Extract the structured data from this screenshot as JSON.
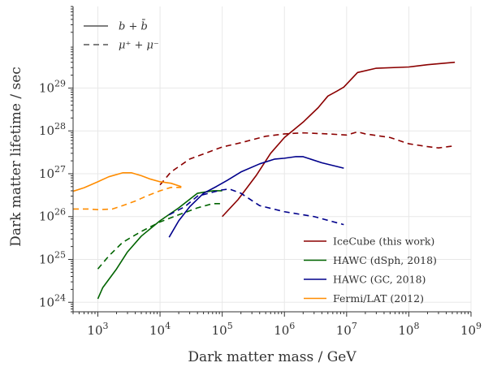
{
  "chart_data": {
    "type": "line",
    "xlabel": "Dark matter mass / GeV",
    "ylabel": "Dark matter lifetime / sec",
    "xscale": "log",
    "yscale": "log",
    "xlim": [
      400,
      1000000000
    ],
    "ylim": [
      600000000000000000000000,
      8e+30
    ],
    "grid": true,
    "x_ticks": [
      {
        "value": 1000,
        "label": "10^3"
      },
      {
        "value": 10000,
        "label": "10^4"
      },
      {
        "value": 100000,
        "label": "10^5"
      },
      {
        "value": 1000000,
        "label": "10^6"
      },
      {
        "value": 10000000,
        "label": "10^7"
      },
      {
        "value": 100000000,
        "label": "10^8"
      },
      {
        "value": 1000000000,
        "label": "10^9"
      }
    ],
    "y_ticks": [
      {
        "value": 1e+24,
        "label": "10^24"
      },
      {
        "value": 1e+25,
        "label": "10^25"
      },
      {
        "value": 1e+26,
        "label": "10^26"
      },
      {
        "value": 1e+27,
        "label": "10^27"
      },
      {
        "value": 1e+28,
        "label": "10^28"
      },
      {
        "value": 1e+29,
        "label": "10^29"
      }
    ],
    "style_legend": {
      "position": "top-left",
      "entries": [
        {
          "label": "b + b̄",
          "dash": "solid"
        },
        {
          "label": "μ⁺ + μ⁻",
          "dash": "dashed"
        }
      ]
    },
    "legend": {
      "position": "bottom-right",
      "entries": [
        {
          "label": "IceCube (this work)",
          "color": "#8b0000"
        },
        {
          "label": "HAWC (dSph, 2018)",
          "color": "#006400"
        },
        {
          "label": "HAWC (GC, 2018)",
          "color": "#00008b"
        },
        {
          "label": "Fermi/LAT (2012)",
          "color": "#ff8c00"
        }
      ]
    },
    "series": [
      {
        "name": "IceCube (this work)",
        "channel": "b + b̄",
        "dash": "solid",
        "color": "#8b0000",
        "points": [
          [
            100000,
            1e+26
          ],
          [
            180000,
            2.5e+26
          ],
          [
            350000,
            9e+26
          ],
          [
            600000,
            3e+27
          ],
          [
            1000000,
            7e+27
          ],
          [
            2000000,
            1.6e+28
          ],
          [
            3500000,
            3.5e+28
          ],
          [
            5000000,
            6.5e+28
          ],
          [
            7000000,
            8.5e+28
          ],
          [
            9000000,
            1.05e+29
          ],
          [
            15000000,
            2.3e+29
          ],
          [
            30000000,
            2.9e+29
          ],
          [
            100000000,
            3.1e+29
          ],
          [
            200000000,
            3.5e+29
          ],
          [
            550000000,
            4e+29
          ]
        ]
      },
      {
        "name": "IceCube (this work)",
        "channel": "μ⁺ + μ⁻",
        "dash": "dashed",
        "color": "#8b0000",
        "points": [
          [
            10000,
            5.5e+26
          ],
          [
            15000,
            1.1e+27
          ],
          [
            30000,
            2.2e+27
          ],
          [
            60000,
            3.2e+27
          ],
          [
            100000,
            4.2e+27
          ],
          [
            200000,
            5.3e+27
          ],
          [
            500000,
            7.5e+27
          ],
          [
            1000000,
            8.5e+27
          ],
          [
            2000000,
            9e+27
          ],
          [
            5000000,
            8.5e+27
          ],
          [
            10000000,
            8e+27
          ],
          [
            15000000,
            9.5e+27
          ],
          [
            20000000,
            8.5e+27
          ],
          [
            50000000,
            7e+27
          ],
          [
            100000000,
            5e+27
          ],
          [
            200000000,
            4.3e+27
          ],
          [
            300000000,
            4e+27
          ],
          [
            550000000,
            4.5e+27
          ]
        ]
      },
      {
        "name": "HAWC (dSph, 2018)",
        "channel": "b + b̄",
        "dash": "solid",
        "color": "#006400",
        "points": [
          [
            1000,
            1.2e+24
          ],
          [
            1200,
            2.2e+24
          ],
          [
            2000,
            6e+24
          ],
          [
            3000,
            1.5e+25
          ],
          [
            5000,
            3.5e+25
          ],
          [
            10000,
            8e+25
          ],
          [
            20000,
            1.6e+26
          ],
          [
            40000,
            3.5e+26
          ],
          [
            70000,
            4e+26
          ],
          [
            100000,
            4e+26
          ]
        ]
      },
      {
        "name": "HAWC (dSph, 2018)",
        "channel": "μ⁺ + μ⁻",
        "dash": "dashed",
        "color": "#006400",
        "points": [
          [
            1000,
            6e+24
          ],
          [
            1500,
            1.2e+25
          ],
          [
            2500,
            2.5e+25
          ],
          [
            5000,
            4.5e+25
          ],
          [
            10000,
            7.5e+25
          ],
          [
            20000,
            1.1e+26
          ],
          [
            40000,
            1.6e+26
          ],
          [
            70000,
            2e+26
          ],
          [
            100000,
            2e+26
          ]
        ]
      },
      {
        "name": "HAWC (GC, 2018)",
        "channel": "b + b̄",
        "dash": "solid",
        "color": "#00008b",
        "points": [
          [
            14000,
            3.3e+25
          ],
          [
            20000,
            8e+25
          ],
          [
            30000,
            1.7e+26
          ],
          [
            50000,
            3.5e+26
          ],
          [
            80000,
            5e+26
          ],
          [
            120000,
            7e+26
          ],
          [
            200000,
            1.1e+27
          ],
          [
            400000,
            1.7e+27
          ],
          [
            700000,
            2.2e+27
          ],
          [
            1000000,
            2.3e+27
          ],
          [
            1500000,
            2.5e+27
          ],
          [
            2000000,
            2.5e+27
          ],
          [
            4000000,
            1.8e+27
          ],
          [
            9000000,
            1.35e+27
          ]
        ]
      },
      {
        "name": "HAWC (GC, 2018)",
        "channel": "μ⁺ + μ⁻",
        "dash": "dashed",
        "color": "#00008b",
        "points": [
          [
            14000,
            1.1e+26
          ],
          [
            25000,
            1.7e+26
          ],
          [
            40000,
            3e+26
          ],
          [
            70000,
            3.7e+26
          ],
          [
            100000,
            4.2e+26
          ],
          [
            130000,
            4.4e+26
          ],
          [
            200000,
            3.5e+26
          ],
          [
            400000,
            1.8e+26
          ],
          [
            1000000,
            1.3e+26
          ],
          [
            3000000,
            1e+26
          ],
          [
            9000000,
            6.5e+25
          ]
        ]
      },
      {
        "name": "Fermi/LAT (2012)",
        "channel": "b + b̄",
        "dash": "solid",
        "color": "#ff8c00",
        "points": [
          [
            400,
            3.9e+26
          ],
          [
            600,
            4.7e+26
          ],
          [
            1000,
            6.5e+26
          ],
          [
            1500,
            8.5e+26
          ],
          [
            2500,
            1.05e+27
          ],
          [
            3500,
            1.05e+27
          ],
          [
            5000,
            9e+26
          ],
          [
            7000,
            7.5e+26
          ],
          [
            10000,
            6.5e+26
          ],
          [
            15000,
            6e+26
          ],
          [
            22000,
            5e+26
          ]
        ]
      },
      {
        "name": "Fermi/LAT (2012)",
        "channel": "μ⁺ + μ⁻",
        "dash": "dashed",
        "color": "#ff8c00",
        "points": [
          [
            400,
            1.5e+26
          ],
          [
            700,
            1.5e+26
          ],
          [
            1000,
            1.45e+26
          ],
          [
            1700,
            1.5e+26
          ],
          [
            2500,
            1.8e+26
          ],
          [
            4000,
            2.3e+26
          ],
          [
            6000,
            3e+26
          ],
          [
            10000,
            4e+26
          ],
          [
            15000,
            4.8e+26
          ],
          [
            22000,
            4.8e+26
          ]
        ]
      }
    ]
  }
}
